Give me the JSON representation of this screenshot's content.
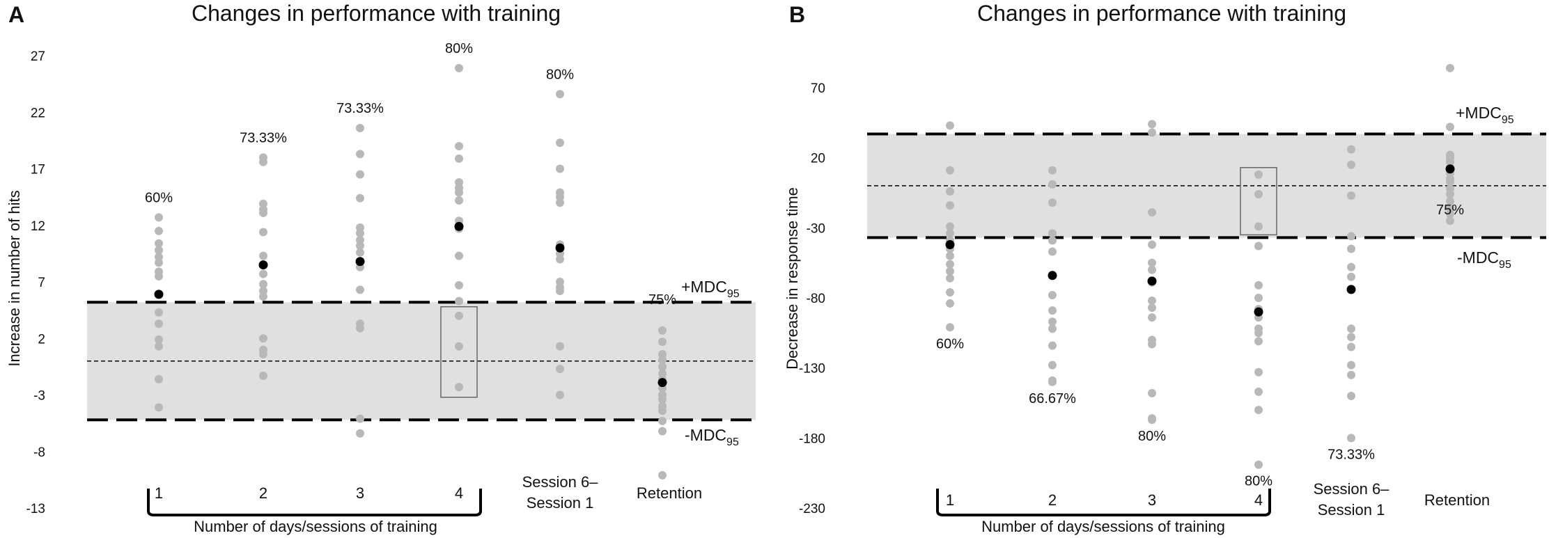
{
  "colors": {
    "band": "#e0e0e0",
    "individual": "#b8b8b8",
    "mean": "#000000",
    "line": "#000000",
    "box": "#666666"
  },
  "chart_data": [
    {
      "type": "scatter",
      "panel_label": "A",
      "title": "Changes in performance with training",
      "ylabel": "Increase in number of hits",
      "xlabel": "Number of days/sessions of training",
      "ylim": [
        -13,
        27
      ],
      "yticks": [
        27,
        22,
        17,
        12,
        7,
        2,
        -3,
        -8,
        -13
      ],
      "mdc_upper": 5.2,
      "mdc_lower": -5.2,
      "zero_line": 0,
      "mdc_plus_label": "+MDC",
      "mdc_minus_label": "-MDC",
      "mdc_subscript": "95",
      "categories": [
        {
          "label": "1",
          "mean": 5.9,
          "percent": "60%",
          "values": [
            12.7,
            11.5,
            10.4,
            9.8,
            9.2,
            8.7,
            7.9,
            7.5,
            5.9,
            4.3,
            3.3,
            1.9,
            1.3,
            -1.6,
            -4.1
          ]
        },
        {
          "label": "2",
          "mean": 8.5,
          "percent": "73.33%",
          "values": [
            18.0,
            17.6,
            13.9,
            13.4,
            13.1,
            11.4,
            9.3,
            7.7,
            6.8,
            6.2,
            5.7,
            2.0,
            1.0,
            0.6,
            -1.3
          ]
        },
        {
          "label": "3",
          "mean": 8.8,
          "percent": "73.33%",
          "values": [
            20.6,
            18.3,
            16.5,
            14.4,
            11.8,
            11.3,
            10.7,
            10.2,
            9.6,
            8.3,
            6.3,
            3.3,
            2.9,
            -5.1,
            -6.4
          ]
        },
        {
          "label": "4",
          "mean": 11.9,
          "percent": "80%",
          "values": [
            25.9,
            19.0,
            17.9,
            15.8,
            15.3,
            14.9,
            14.2,
            12.4,
            11.7,
            9.3,
            6.7,
            5.3,
            4.0,
            1.3,
            -2.3
          ]
        },
        {
          "label": "Session 6–\nSession 1",
          "mean": 10.0,
          "percent": "80%",
          "values": [
            23.6,
            19.3,
            17.0,
            14.9,
            14.5,
            14.0,
            10.3,
            9.5,
            9.0,
            7.0,
            6.5,
            6.2,
            1.3,
            -0.7,
            -3.0
          ]
        },
        {
          "label": "Retention",
          "mean": -1.9,
          "percent": "75%",
          "values": [
            2.7,
            1.7,
            0.6,
            0.1,
            -0.5,
            -1.1,
            -1.6,
            -2.4,
            -3.0,
            -3.4,
            -4.0,
            -4.4,
            -5.3,
            -6.2,
            -10.1
          ]
        }
      ],
      "box_category_index": 3,
      "box_range": [
        -3.2,
        4.8
      ],
      "bracket_categories": [
        0,
        3
      ]
    },
    {
      "type": "scatter",
      "panel_label": "B",
      "title": "Changes in performance with training",
      "ylabel": "Decrease in response time",
      "xlabel": "Number of days/sessions of training",
      "ylim": [
        -230,
        70
      ],
      "yticks": [
        70,
        20,
        -30,
        -80,
        -130,
        -180,
        -230
      ],
      "mdc_upper": 37,
      "mdc_lower": -37,
      "zero_line": 0,
      "mdc_plus_label": "+MDC",
      "mdc_minus_label": "-MDC",
      "mdc_subscript": "95",
      "categories": [
        {
          "label": "1",
          "mean": -42,
          "percent": "60%",
          "values": [
            43,
            11,
            -4,
            -14,
            -29,
            -34,
            -39,
            -45,
            -50,
            -56,
            -61,
            -66,
            -76,
            -84,
            -101
          ]
        },
        {
          "label": "2",
          "mean": -64,
          "percent": "66.67%",
          "values": [
            11,
            1,
            -12,
            -34,
            -39,
            -47,
            -64,
            -78,
            -89,
            -97,
            -102,
            -114,
            -128,
            -139,
            -140
          ]
        },
        {
          "label": "3",
          "mean": -68,
          "percent": "80%",
          "values": [
            44,
            38,
            -19,
            -42,
            -55,
            -60,
            -69,
            -82,
            -87,
            -94,
            -110,
            -113,
            -148,
            -166,
            -167
          ]
        },
        {
          "label": "4",
          "mean": -90,
          "percent": "80%",
          "values": [
            8,
            -6,
            -29,
            -43,
            -71,
            -80,
            -88,
            -94,
            -102,
            -105,
            -111,
            -133,
            -147,
            -160,
            -199
          ]
        },
        {
          "label": "Session 6–\nSession 1",
          "mean": -74,
          "percent": "73.33%",
          "values": [
            26,
            15,
            -7,
            -36,
            -45,
            -58,
            -65,
            -74,
            -102,
            -108,
            -115,
            -128,
            -135,
            -150,
            -180
          ]
        },
        {
          "label": "Retention",
          "mean": 12,
          "percent": "75%",
          "values": [
            84,
            42,
            22,
            20,
            17,
            13,
            9,
            5,
            3,
            -2,
            -6,
            -11,
            -16,
            -20,
            -25
          ]
        }
      ],
      "box_category_index": 3,
      "box_range": [
        -35,
        13
      ],
      "bracket_categories": [
        0,
        3
      ]
    }
  ]
}
